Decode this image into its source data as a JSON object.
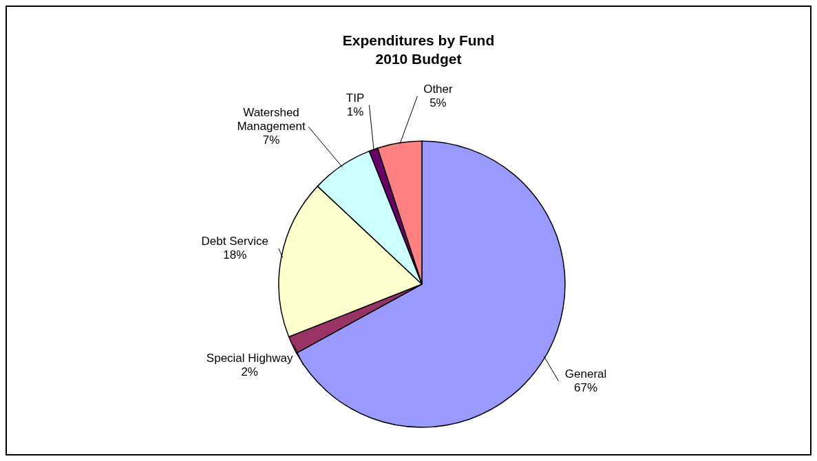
{
  "chart_data": {
    "type": "pie",
    "title": "Expenditures by Fund\n2010 Budget",
    "categories": [
      "General",
      "Special Highway",
      "Debt Service",
      "Watershed Management",
      "TIP",
      "Other"
    ],
    "values": [
      67,
      2,
      18,
      7,
      1,
      5
    ],
    "value_labels": [
      "67%",
      "2%",
      "18%",
      "7%",
      "1%",
      "5%"
    ],
    "colors": [
      "#9999ff",
      "#993366",
      "#ffffcc",
      "#ccffff",
      "#660066",
      "#ff8080"
    ]
  }
}
